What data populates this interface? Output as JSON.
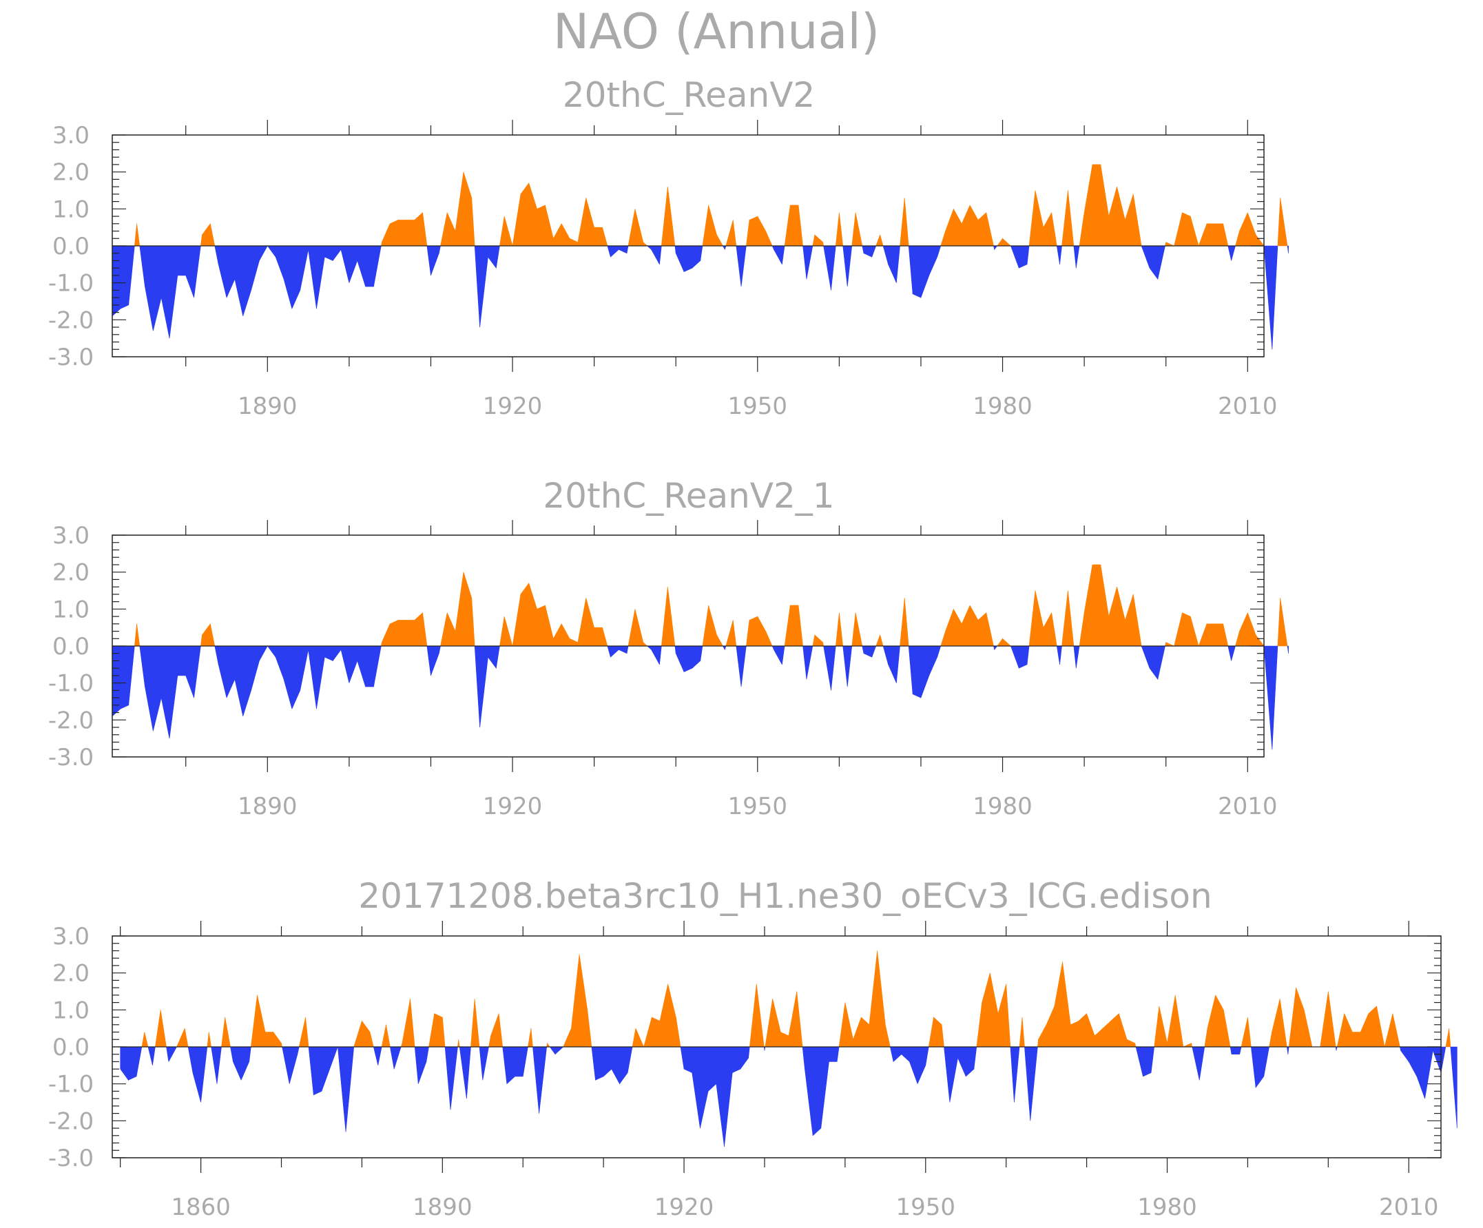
{
  "figure": {
    "title": "NAO (Annual)"
  },
  "colors": {
    "positive": "#ff8000",
    "negative": "#2a3df0",
    "axis": "#222222",
    "text": "#aaaaaa"
  },
  "chart_data": [
    {
      "type": "area",
      "title": "20thC_ReanV2",
      "xlim": [
        1871,
        2012
      ],
      "ylim": [
        -3,
        3
      ],
      "yticks": [
        -3,
        -2,
        -1,
        0,
        1,
        2,
        3
      ],
      "ytick_labels": [
        "-3.0",
        "-2.0",
        "-1.0",
        "0.0",
        "1.0",
        "2.0",
        "3.0"
      ],
      "xtick_labels": [
        "1890",
        "1920",
        "1950",
        "1980",
        "2010"
      ],
      "years_start": 1871,
      "values": [
        -1.9,
        -1.7,
        -1.6,
        0.6,
        -1.1,
        -2.3,
        -1.4,
        -2.5,
        -0.8,
        -0.8,
        -1.4,
        0.3,
        0.6,
        -0.5,
        -1.4,
        -0.9,
        -1.9,
        -1.2,
        -0.4,
        0.0,
        -0.3,
        -0.9,
        -1.7,
        -1.2,
        -0.1,
        -1.7,
        -0.3,
        -0.4,
        -0.1,
        -1.0,
        -0.4,
        -1.1,
        -1.1,
        0.1,
        0.6,
        0.7,
        0.7,
        0.7,
        0.9,
        -0.8,
        -0.2,
        0.9,
        0.4,
        2.0,
        1.3,
        -2.2,
        -0.3,
        -0.6,
        0.8,
        0.0,
        1.4,
        1.7,
        1.0,
        1.1,
        0.2,
        0.6,
        0.2,
        0.1,
        1.3,
        0.5,
        0.5,
        -0.3,
        -0.1,
        -0.2,
        1.0,
        0.1,
        -0.1,
        -0.5,
        1.6,
        -0.2,
        -0.7,
        -0.6,
        -0.4,
        1.1,
        0.3,
        -0.1,
        0.7,
        -1.1,
        0.7,
        0.8,
        0.4,
        -0.1,
        -0.5,
        1.1,
        1.1,
        -0.9,
        0.3,
        0.1,
        -1.2,
        0.9,
        -1.1,
        0.9,
        -0.2,
        -0.3,
        0.3,
        -0.5,
        -1.0,
        1.3,
        -1.3,
        -1.4,
        -0.8,
        -0.3,
        0.4,
        1.0,
        0.6,
        1.1,
        0.7,
        0.9,
        -0.1,
        0.2,
        0.0,
        -0.6,
        -0.5,
        1.5,
        0.5,
        0.9,
        -0.5,
        1.5,
        -0.6,
        0.9,
        2.2,
        2.2,
        0.8,
        1.6,
        0.7,
        1.4,
        0.0,
        -0.6,
        -0.9,
        0.1,
        0.0,
        0.9,
        0.8,
        0.0,
        0.6,
        0.6,
        0.6,
        -0.4,
        0.4,
        0.9,
        0.3,
        0.0,
        -2.8,
        1.3,
        -0.2
      ]
    },
    {
      "type": "area",
      "title": "20thC_ReanV2_1",
      "xlim": [
        1871,
        2012
      ],
      "ylim": [
        -3,
        3
      ],
      "yticks": [
        -3,
        -2,
        -1,
        0,
        1,
        2,
        3
      ],
      "ytick_labels": [
        "-3.0",
        "-2.0",
        "-1.0",
        "0.0",
        "1.0",
        "2.0",
        "3.0"
      ],
      "xtick_labels": [
        "1890",
        "1920",
        "1950",
        "1980",
        "2010"
      ],
      "years_start": 1871,
      "values": [
        -1.9,
        -1.7,
        -1.6,
        0.6,
        -1.1,
        -2.3,
        -1.4,
        -2.5,
        -0.8,
        -0.8,
        -1.4,
        0.3,
        0.6,
        -0.5,
        -1.4,
        -0.9,
        -1.9,
        -1.2,
        -0.4,
        0.0,
        -0.3,
        -0.9,
        -1.7,
        -1.2,
        -0.1,
        -1.7,
        -0.3,
        -0.4,
        -0.1,
        -1.0,
        -0.4,
        -1.1,
        -1.1,
        0.1,
        0.6,
        0.7,
        0.7,
        0.7,
        0.9,
        -0.8,
        -0.2,
        0.9,
        0.4,
        2.0,
        1.3,
        -2.2,
        -0.3,
        -0.6,
        0.8,
        0.0,
        1.4,
        1.7,
        1.0,
        1.1,
        0.2,
        0.6,
        0.2,
        0.1,
        1.3,
        0.5,
        0.5,
        -0.3,
        -0.1,
        -0.2,
        1.0,
        0.1,
        -0.1,
        -0.5,
        1.6,
        -0.2,
        -0.7,
        -0.6,
        -0.4,
        1.1,
        0.3,
        -0.1,
        0.7,
        -1.1,
        0.7,
        0.8,
        0.4,
        -0.1,
        -0.5,
        1.1,
        1.1,
        -0.9,
        0.3,
        0.1,
        -1.2,
        0.9,
        -1.1,
        0.9,
        -0.2,
        -0.3,
        0.3,
        -0.5,
        -1.0,
        1.3,
        -1.3,
        -1.4,
        -0.8,
        -0.3,
        0.4,
        1.0,
        0.6,
        1.1,
        0.7,
        0.9,
        -0.1,
        0.2,
        0.0,
        -0.6,
        -0.5,
        1.5,
        0.5,
        0.9,
        -0.5,
        1.5,
        -0.6,
        0.9,
        2.2,
        2.2,
        0.8,
        1.6,
        0.7,
        1.4,
        0.0,
        -0.6,
        -0.9,
        0.1,
        0.0,
        0.9,
        0.8,
        0.0,
        0.6,
        0.6,
        0.6,
        -0.4,
        0.4,
        0.9,
        0.3,
        0.0,
        -2.8,
        1.3,
        -0.2
      ]
    },
    {
      "type": "area",
      "title": "20171208.beta3rc10_H1.ne30_oECv3_ICG.edison",
      "xlim": [
        1849,
        2014
      ],
      "ylim": [
        -3,
        3
      ],
      "yticks": [
        -3,
        -2,
        -1,
        0,
        1,
        2,
        3
      ],
      "ytick_labels": [
        "-3.0",
        "-2.0",
        "-1.0",
        "0.0",
        "1.0",
        "2.0",
        "3.0"
      ],
      "xtick_labels": [
        "1860",
        "1890",
        "1920",
        "1950",
        "1980",
        "2010"
      ],
      "years_start": 1850,
      "values": [
        -0.6,
        -0.9,
        -0.8,
        0.4,
        -0.5,
        1.0,
        -0.4,
        0.0,
        0.5,
        -0.7,
        -1.5,
        0.4,
        -1.0,
        0.8,
        -0.4,
        -0.9,
        -0.4,
        1.4,
        0.4,
        0.4,
        0.1,
        -1.0,
        -0.2,
        0.8,
        -1.3,
        -1.2,
        -0.6,
        0.0,
        -2.3,
        0.0,
        0.7,
        0.4,
        -0.5,
        0.6,
        -0.6,
        0.1,
        1.3,
        -1.0,
        -0.4,
        0.9,
        0.8,
        -1.7,
        0.2,
        -1.4,
        1.3,
        -0.9,
        0.3,
        0.9,
        -1.0,
        -0.8,
        -0.8,
        0.5,
        -1.8,
        0.1,
        -0.2,
        0.0,
        0.5,
        2.5,
        1.0,
        -0.9,
        -0.8,
        -0.6,
        -1.0,
        -0.7,
        0.5,
        0.0,
        0.8,
        0.7,
        1.7,
        0.8,
        -0.6,
        -0.7,
        -2.2,
        -1.2,
        -1.0,
        -2.7,
        -0.7,
        -0.6,
        -0.3,
        1.7,
        -0.1,
        1.3,
        0.4,
        0.3,
        1.5,
        -0.6,
        -2.4,
        -2.2,
        -0.4,
        -0.4,
        1.2,
        0.2,
        0.8,
        0.6,
        2.6,
        0.6,
        -0.4,
        -0.2,
        -0.4,
        -1.0,
        -0.5,
        0.8,
        0.6,
        -1.5,
        -0.3,
        -0.8,
        -0.6,
        1.2,
        2.0,
        0.9,
        1.7,
        -1.5,
        0.8,
        -2.0,
        0.2,
        0.6,
        1.1,
        2.3,
        0.6,
        0.7,
        0.9,
        0.3,
        0.5,
        0.7,
        0.9,
        0.2,
        0.1,
        -0.8,
        -0.7,
        1.1,
        0.1,
        1.4,
        0.0,
        0.1,
        -0.9,
        0.5,
        1.4,
        1.0,
        -0.2,
        -0.2,
        0.8,
        -1.1,
        -0.8,
        0.4,
        1.3,
        -0.2,
        1.6,
        1.0,
        0.0,
        0.0,
        1.5,
        -0.1,
        0.9,
        0.4,
        0.4,
        0.9,
        1.1,
        0.0,
        0.9,
        -0.1,
        -0.4,
        -0.8,
        -1.4,
        -0.1,
        -0.7,
        0.5,
        -2.2
      ]
    }
  ]
}
